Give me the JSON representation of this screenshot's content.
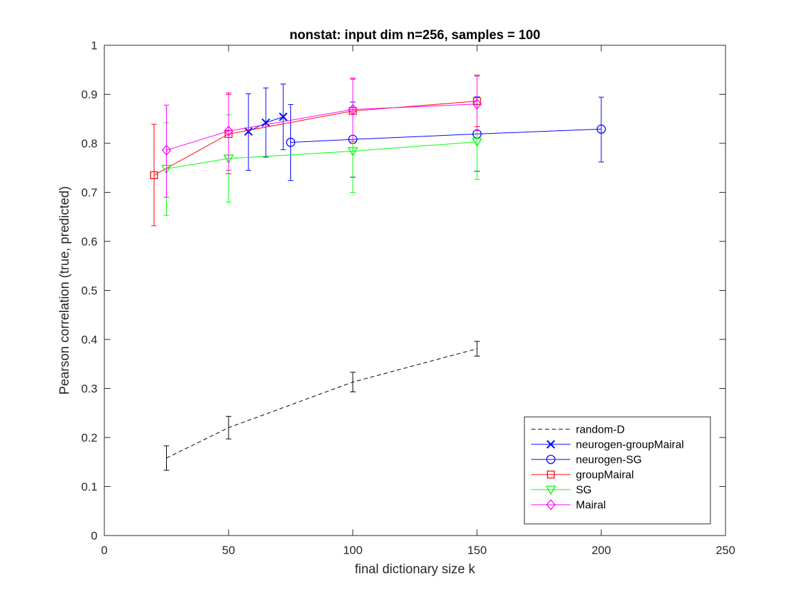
{
  "chart_data": {
    "type": "line",
    "title": "nonstat: input dim n=256, samples = 100",
    "xlabel": "final dictionary size k",
    "ylabel": "Pearson correlation (true, predicted)",
    "xlim": [
      0,
      250
    ],
    "ylim": [
      0,
      1
    ],
    "xticks": [
      0,
      50,
      100,
      150,
      200,
      250
    ],
    "yticks": [
      0,
      0.1,
      0.2,
      0.3,
      0.4,
      0.5,
      0.6,
      0.7,
      0.8,
      0.9,
      1
    ],
    "xtick_labels": [
      "0",
      "50",
      "100",
      "150",
      "200",
      "250"
    ],
    "ytick_labels": [
      "0",
      "0.1",
      "0.2",
      "0.3",
      "0.4",
      "0.5",
      "0.6",
      "0.7",
      "0.8",
      "0.9",
      "1"
    ],
    "grid": false,
    "legend_position": "bottom-right",
    "series": [
      {
        "name": "random-D",
        "color": "#000000",
        "line_style": "dashed",
        "marker": "none",
        "x": [
          25,
          50,
          100,
          150
        ],
        "y": [
          0.158,
          0.22,
          0.313,
          0.381
        ],
        "err_low": [
          0.133,
          0.197,
          0.293,
          0.366
        ],
        "err_high": [
          0.183,
          0.243,
          0.333,
          0.396
        ]
      },
      {
        "name": "neurogen-groupMairal",
        "color": "#0000ff",
        "line_style": "solid",
        "marker": "x",
        "x": [
          58,
          65,
          72
        ],
        "y": [
          0.824,
          0.842,
          0.854
        ],
        "err_low": [
          0.745,
          0.772,
          0.787
        ],
        "err_high": [
          0.901,
          0.913,
          0.921
        ]
      },
      {
        "name": "neurogen-SG",
        "color": "#0000ff",
        "line_style": "solid",
        "marker": "circle",
        "x": [
          75,
          100,
          150,
          200
        ],
        "y": [
          0.802,
          0.808,
          0.819,
          0.829
        ],
        "err_low": [
          0.724,
          0.731,
          0.743,
          0.762
        ],
        "err_high": [
          0.879,
          0.884,
          0.895,
          0.894
        ]
      },
      {
        "name": "groupMairal",
        "color": "#ff0000",
        "line_style": "solid",
        "marker": "square",
        "x": [
          20,
          50,
          100,
          150
        ],
        "y": [
          0.735,
          0.819,
          0.866,
          0.886
        ],
        "err_low": [
          0.632,
          0.738,
          0.8,
          0.834
        ],
        "err_high": [
          0.839,
          0.9,
          0.931,
          0.939
        ]
      },
      {
        "name": "SG",
        "color": "#00ff00",
        "line_style": "solid",
        "marker": "triangle-down",
        "x": [
          25,
          50,
          100,
          150
        ],
        "y": [
          0.748,
          0.769,
          0.784,
          0.803
        ],
        "err_low": [
          0.653,
          0.68,
          0.7,
          0.726
        ],
        "err_high": [
          0.842,
          0.858,
          0.869,
          0.88
        ]
      },
      {
        "name": "Mairal",
        "color": "#ff00ff",
        "line_style": "solid",
        "marker": "diamond",
        "x": [
          25,
          50,
          100,
          150
        ],
        "y": [
          0.786,
          0.825,
          0.869,
          0.88
        ],
        "err_low": [
          0.69,
          0.745,
          0.804,
          0.826
        ],
        "err_high": [
          0.878,
          0.903,
          0.933,
          0.937
        ]
      }
    ]
  }
}
